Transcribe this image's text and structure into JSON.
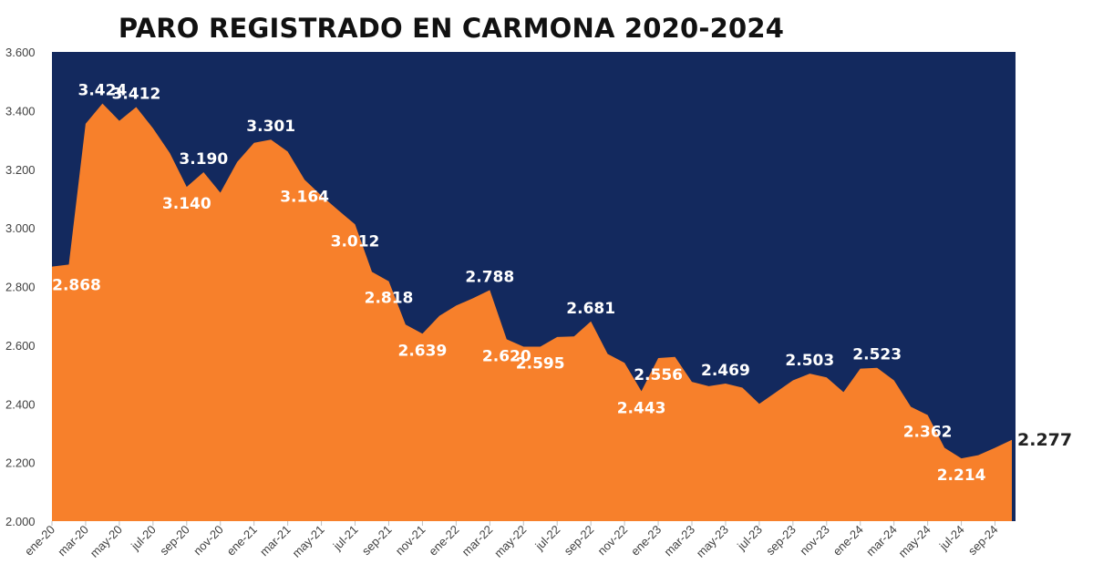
{
  "chart_data": {
    "type": "area",
    "title": "PARO REGISTRADO EN CARMONA 2020-2024",
    "ylim": [
      2000,
      3600
    ],
    "yticks": [
      "2.000",
      "2.200",
      "2.400",
      "2.600",
      "2.800",
      "3.000",
      "3.200",
      "3.400",
      "3.600"
    ],
    "x": [
      "ene-20",
      "feb-20",
      "mar-20",
      "abr-20",
      "may-20",
      "jun-20",
      "jul-20",
      "ago-20",
      "sep-20",
      "oct-20",
      "nov-20",
      "dic-20",
      "ene-21",
      "feb-21",
      "mar-21",
      "abr-21",
      "may-21",
      "jun-21",
      "jul-21",
      "ago-21",
      "sep-21",
      "oct-21",
      "nov-21",
      "dic-21",
      "ene-22",
      "feb-22",
      "mar-22",
      "abr-22",
      "may-22",
      "jun-22",
      "jul-22",
      "ago-22",
      "sep-22",
      "oct-22",
      "nov-22",
      "dic-22",
      "ene-23",
      "feb-23",
      "mar-23",
      "abr-23",
      "may-23",
      "jun-23",
      "jul-23",
      "ago-23",
      "sep-23",
      "oct-23",
      "nov-23",
      "dic-23",
      "ene-24",
      "feb-24",
      "mar-24",
      "abr-24",
      "may-24",
      "jun-24",
      "jul-24",
      "ago-24",
      "sep-24",
      "oct-24"
    ],
    "xtick_labels": [
      "ene-20",
      "mar-20",
      "may-20",
      "jul-20",
      "sep-20",
      "nov-20",
      "ene-21",
      "mar-21",
      "may-21",
      "jul-21",
      "sep-21",
      "nov-21",
      "ene-22",
      "mar-22",
      "may-22",
      "jul-22",
      "sep-22",
      "nov-22",
      "ene-23",
      "mar-23",
      "may-23",
      "jul-23",
      "sep-23",
      "nov-23",
      "ene-24",
      "mar-24",
      "may-24",
      "jul-24",
      "sep-24"
    ],
    "series": [
      {
        "values": [
          2868,
          2875,
          3355,
          3424,
          3365,
          3412,
          3340,
          3255,
          3140,
          3190,
          3120,
          3225,
          3290,
          3301,
          3260,
          3164,
          3110,
          3060,
          3012,
          2850,
          2818,
          2670,
          2639,
          2700,
          2735,
          2760,
          2788,
          2620,
          2595,
          2595,
          2628,
          2630,
          2681,
          2570,
          2540,
          2443,
          2556,
          2560,
          2475,
          2460,
          2469,
          2455,
          2400,
          2440,
          2480,
          2503,
          2490,
          2440,
          2520,
          2523,
          2480,
          2390,
          2362,
          2250,
          2214,
          2225,
          2250,
          2277
        ],
        "color": "#f7802b"
      }
    ],
    "data_labels": [
      {
        "index": 0,
        "text": "2.868"
      },
      {
        "index": 3,
        "text": "3.424"
      },
      {
        "index": 5,
        "text": "3.412"
      },
      {
        "index": 8,
        "text": "3.140"
      },
      {
        "index": 9,
        "text": "3.190"
      },
      {
        "index": 13,
        "text": "3.301"
      },
      {
        "index": 15,
        "text": "3.164"
      },
      {
        "index": 18,
        "text": "3.012"
      },
      {
        "index": 20,
        "text": "2.818"
      },
      {
        "index": 22,
        "text": "2.639"
      },
      {
        "index": 26,
        "text": "2.788"
      },
      {
        "index": 27,
        "text": "2.620"
      },
      {
        "index": 29,
        "text": "2.595"
      },
      {
        "index": 32,
        "text": "2.681"
      },
      {
        "index": 35,
        "text": "2.443"
      },
      {
        "index": 36,
        "text": "2.556"
      },
      {
        "index": 40,
        "text": "2.469"
      },
      {
        "index": 45,
        "text": "2.503"
      },
      {
        "index": 49,
        "text": "2.523"
      },
      {
        "index": 52,
        "text": "2.362"
      },
      {
        "index": 54,
        "text": "2.214"
      },
      {
        "index": 57,
        "text": "2.277"
      }
    ],
    "plot_background": "#13295e",
    "fill_color": "#f7802b",
    "grid": false,
    "legend": "none"
  }
}
